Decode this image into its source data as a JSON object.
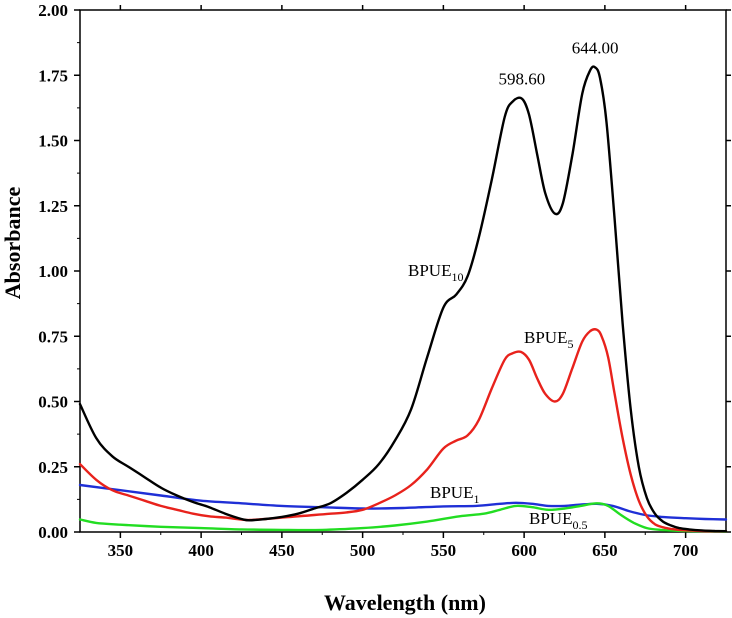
{
  "chart_data": {
    "type": "line",
    "title": "",
    "xlabel": "Wavelength (nm)",
    "ylabel": "Absorbance",
    "xlim": [
      325,
      725
    ],
    "ylim": [
      0,
      2.0
    ],
    "xticks": [
      350,
      400,
      450,
      500,
      550,
      600,
      650,
      700
    ],
    "yticks": [
      0.0,
      0.25,
      0.5,
      0.75,
      1.0,
      1.25,
      1.5,
      1.75,
      2.0
    ],
    "ytick_labels": [
      "0.00",
      "0.25",
      "0.50",
      "0.75",
      "1.00",
      "1.25",
      "1.50",
      "1.75",
      "2.00"
    ],
    "grid": false,
    "series": [
      {
        "name": "BPUE10",
        "label_main": "BPUE",
        "label_sub": "10",
        "color": "#000000",
        "x": [
          325,
          335,
          345,
          355,
          365,
          375,
          385,
          395,
          405,
          415,
          425,
          430,
          440,
          450,
          460,
          470,
          480,
          490,
          500,
          510,
          520,
          530,
          540,
          550,
          558,
          565,
          572,
          580,
          588,
          593,
          598.6,
          603,
          608,
          613,
          619,
          624,
          630,
          636,
          641,
          644,
          647,
          651,
          656,
          661,
          666,
          671,
          676,
          681,
          686,
          691,
          696,
          702,
          710,
          718,
          725
        ],
        "y": [
          0.49,
          0.36,
          0.29,
          0.25,
          0.21,
          0.17,
          0.14,
          0.115,
          0.095,
          0.07,
          0.05,
          0.045,
          0.05,
          0.058,
          0.07,
          0.09,
          0.11,
          0.15,
          0.2,
          0.26,
          0.35,
          0.47,
          0.67,
          0.86,
          0.91,
          0.98,
          1.13,
          1.35,
          1.59,
          1.65,
          1.66,
          1.6,
          1.45,
          1.3,
          1.22,
          1.26,
          1.45,
          1.68,
          1.77,
          1.78,
          1.74,
          1.57,
          1.2,
          0.8,
          0.47,
          0.25,
          0.13,
          0.07,
          0.04,
          0.025,
          0.015,
          0.01,
          0.006,
          0.004,
          0.003
        ]
      },
      {
        "name": "BPUE5",
        "label_main": "BPUE",
        "label_sub": "5",
        "color": "#e8221c",
        "x": [
          325,
          335,
          345,
          355,
          365,
          375,
          385,
          395,
          405,
          415,
          425,
          430,
          440,
          450,
          460,
          470,
          480,
          490,
          500,
          510,
          520,
          530,
          540,
          550,
          558,
          565,
          572,
          580,
          588,
          593,
          598,
          603,
          608,
          613,
          619,
          624,
          630,
          636,
          641,
          645,
          648,
          652,
          656,
          661,
          666,
          671,
          676,
          681,
          686,
          691,
          696,
          702,
          710,
          718,
          725
        ],
        "y": [
          0.26,
          0.2,
          0.16,
          0.14,
          0.12,
          0.1,
          0.085,
          0.07,
          0.06,
          0.055,
          0.048,
          0.046,
          0.05,
          0.055,
          0.06,
          0.065,
          0.07,
          0.075,
          0.085,
          0.11,
          0.14,
          0.18,
          0.24,
          0.32,
          0.35,
          0.37,
          0.43,
          0.55,
          0.66,
          0.685,
          0.69,
          0.66,
          0.59,
          0.53,
          0.5,
          0.53,
          0.63,
          0.73,
          0.77,
          0.775,
          0.75,
          0.67,
          0.53,
          0.36,
          0.22,
          0.12,
          0.06,
          0.03,
          0.018,
          0.012,
          0.008,
          0.006,
          0.004,
          0.003,
          0.003
        ]
      },
      {
        "name": "BPUE1",
        "label_main": "BPUE",
        "label_sub": "1",
        "color": "#1f2fd6",
        "x": [
          325,
          350,
          375,
          400,
          425,
          450,
          475,
          500,
          525,
          550,
          570,
          585,
          595,
          605,
          615,
          625,
          635,
          645,
          655,
          665,
          675,
          685,
          700,
          712,
          725
        ],
        "y": [
          0.18,
          0.16,
          0.14,
          0.12,
          0.11,
          0.1,
          0.095,
          0.09,
          0.092,
          0.098,
          0.1,
          0.108,
          0.112,
          0.108,
          0.1,
          0.1,
          0.105,
          0.108,
          0.1,
          0.08,
          0.065,
          0.058,
          0.053,
          0.05,
          0.048
        ]
      },
      {
        "name": "BPUE0.5",
        "label_main": "BPUE",
        "label_sub": "0.5",
        "color": "#22dd22",
        "x": [
          325,
          335,
          350,
          375,
          400,
          425,
          450,
          475,
          500,
          520,
          540,
          560,
          575,
          585,
          595,
          605,
          615,
          625,
          635,
          645,
          652,
          660,
          668,
          676,
          685,
          700,
          725
        ],
        "y": [
          0.048,
          0.035,
          0.028,
          0.02,
          0.015,
          0.01,
          0.008,
          0.008,
          0.015,
          0.025,
          0.04,
          0.06,
          0.07,
          0.085,
          0.1,
          0.095,
          0.085,
          0.09,
          0.1,
          0.11,
          0.1,
          0.065,
          0.035,
          0.015,
          0.008,
          0.004,
          0.002
        ]
      }
    ],
    "annotations": [
      {
        "text": "598.60",
        "x": 598.6,
        "y": 1.66
      },
      {
        "text": "644.00",
        "x": 644.0,
        "y": 1.78
      }
    ]
  }
}
